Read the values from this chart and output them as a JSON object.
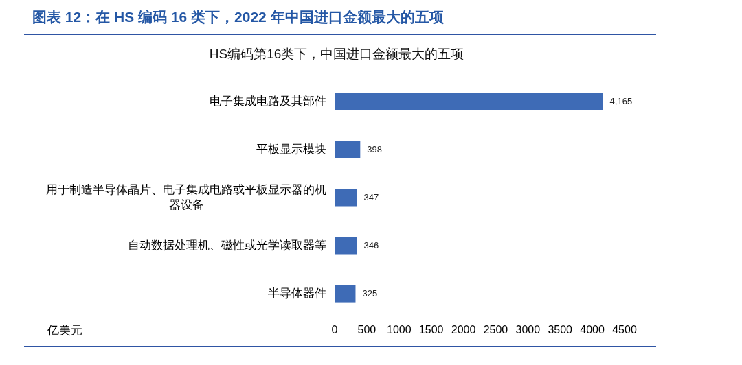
{
  "chart_data": {
    "type": "bar",
    "orientation": "horizontal",
    "title": "图表 12：在 HS 编码 16 类下，2022 年中国进口金额最大的五项",
    "subtitle": "HS编码第16类下，中国进口金额最大的五项",
    "xlabel": "亿美元",
    "categories": [
      "电子集成电路及其部件",
      "平板显示模块",
      "用于制造半导体晶片、电子集成电路或平板显示器的机器设备",
      "自动数据处理机、磁性或光学读取器等",
      "半导体器件"
    ],
    "values": [
      4165,
      398,
      347,
      346,
      325
    ],
    "value_labels": [
      "4,165",
      "398",
      "347",
      "346",
      "325"
    ],
    "color": "#3e6bb6",
    "xlim": [
      0,
      4500
    ],
    "xticks": [
      0,
      500,
      1000,
      1500,
      2000,
      2500,
      3000,
      3500,
      4000,
      4500
    ]
  }
}
